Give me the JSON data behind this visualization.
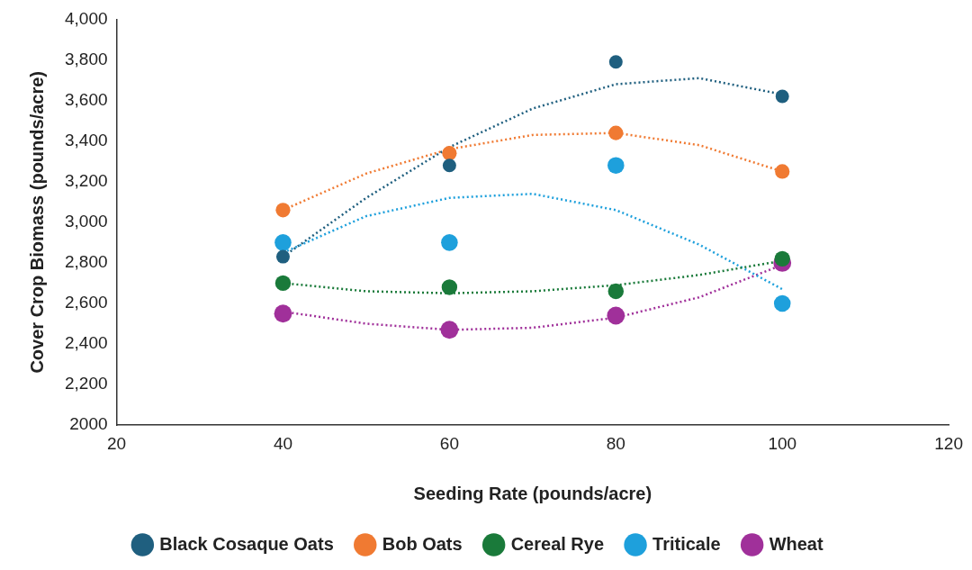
{
  "chart_data": {
    "type": "scatter",
    "xlabel": "Seeding Rate (pounds/acre)",
    "ylabel": "Cover Crop Biomass (pounds/acre)",
    "xlim": [
      20,
      120
    ],
    "xticks": [
      20,
      40,
      60,
      80,
      100,
      120
    ],
    "ylim": [
      2000,
      4000
    ],
    "yticks": [
      {
        "value": 2000,
        "label": "2000"
      },
      {
        "value": 2200,
        "label": "2,200"
      },
      {
        "value": 2400,
        "label": "2,400"
      },
      {
        "value": 2600,
        "label": "2,600"
      },
      {
        "value": 2800,
        "label": "2,800"
      },
      {
        "value": 3000,
        "label": "3,000"
      },
      {
        "value": 3200,
        "label": "3,200"
      },
      {
        "value": 3400,
        "label": "3,400"
      },
      {
        "value": 3600,
        "label": "3,600"
      },
      {
        "value": 3800,
        "label": "3,800"
      },
      {
        "value": 4000,
        "label": "4,000"
      }
    ],
    "grid": false,
    "legend": "bottom",
    "marker": "circle",
    "series": [
      {
        "name": "Black Cosaque Oats",
        "color": "#1f5f7f",
        "x": [
          40,
          60,
          80,
          100
        ],
        "values": [
          2830,
          3280,
          3790,
          3620
        ]
      },
      {
        "name": "Bob Oats",
        "color": "#f07a32",
        "x": [
          40,
          60,
          80,
          100
        ],
        "values": [
          3060,
          3340,
          3440,
          3250
        ]
      },
      {
        "name": "Cereal Rye",
        "color": "#1a7a3a",
        "x": [
          40,
          60,
          80,
          100
        ],
        "values": [
          2700,
          2680,
          2660,
          2820
        ]
      },
      {
        "name": "Triticale",
        "color": "#1ea0dc",
        "x": [
          40,
          60,
          80,
          100
        ],
        "values": [
          2900,
          2900,
          3280,
          2600
        ]
      },
      {
        "name": "Wheat",
        "color": "#a0309a",
        "x": [
          40,
          60,
          80,
          100
        ],
        "values": [
          2550,
          2470,
          2540,
          2800
        ]
      },
      {
        "type": "line",
        "marker": "none",
        "line_style": "dotted",
        "color": "#1f5f7f",
        "x": [
          40,
          50,
          60,
          70,
          80,
          90,
          100
        ],
        "values": [
          2830,
          3120,
          3370,
          3560,
          3680,
          3710,
          3630
        ]
      },
      {
        "type": "line",
        "marker": "none",
        "line_style": "dotted",
        "color": "#f07a32",
        "x": [
          40,
          50,
          60,
          70,
          80,
          90,
          100
        ],
        "values": [
          3060,
          3240,
          3360,
          3430,
          3440,
          3380,
          3250
        ]
      },
      {
        "type": "line",
        "marker": "none",
        "line_style": "dotted",
        "color": "#1a7a3a",
        "x": [
          40,
          50,
          60,
          70,
          80,
          90,
          100
        ],
        "values": [
          2700,
          2660,
          2650,
          2660,
          2690,
          2740,
          2810
        ]
      },
      {
        "type": "line",
        "marker": "none",
        "line_style": "dotted",
        "color": "#1ea0dc",
        "x": [
          40,
          50,
          60,
          70,
          80,
          90,
          100
        ],
        "values": [
          2850,
          3030,
          3120,
          3140,
          3060,
          2890,
          2670
        ]
      },
      {
        "type": "line",
        "marker": "none",
        "line_style": "dotted",
        "color": "#a0309a",
        "x": [
          40,
          50,
          60,
          70,
          80,
          90,
          100
        ],
        "values": [
          2560,
          2500,
          2470,
          2480,
          2530,
          2630,
          2790
        ]
      }
    ]
  }
}
